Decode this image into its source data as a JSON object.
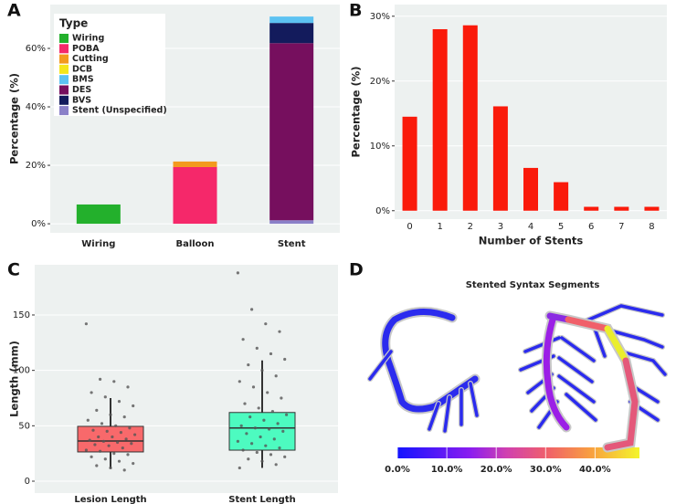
{
  "chart_data": [
    {
      "type": "stacked-bar",
      "panel": "A",
      "ylabel": "Percentage (%)",
      "legend_title": "Type",
      "legend": "top-left",
      "categories": [
        "Wiring",
        "Balloon",
        "Stent"
      ],
      "series": [
        {
          "name": "Wiring",
          "color": "#23b02c",
          "values": [
            6.6,
            0,
            0
          ]
        },
        {
          "name": "POBA",
          "color": "#f5286a",
          "values": [
            0,
            19.4,
            0
          ]
        },
        {
          "name": "Cutting",
          "color": "#f39a1e",
          "values": [
            0,
            1.9,
            0
          ]
        },
        {
          "name": "DCB",
          "color": "#f5e61c",
          "values": [
            0,
            0,
            0
          ]
        },
        {
          "name": "BMS",
          "color": "#5cc2f2",
          "values": [
            0,
            0,
            2.2
          ]
        },
        {
          "name": "DES",
          "color": "#760f5e",
          "values": [
            0,
            0,
            60.6
          ]
        },
        {
          "name": "BVS",
          "color": "#131b5c",
          "values": [
            0,
            0,
            6.9
          ]
        },
        {
          "name": "Stent (Unspecified)",
          "color": "#8a80c8",
          "values": [
            0,
            0,
            1.2
          ]
        }
      ],
      "ylim": [
        -3.1,
        75
      ],
      "yticks": [
        {
          "value": 0,
          "label": "0%"
        },
        {
          "value": 20,
          "label": "20%"
        },
        {
          "value": 40,
          "label": "40%"
        },
        {
          "value": 60,
          "label": "60%"
        }
      ]
    },
    {
      "type": "bar",
      "panel": "B",
      "ylabel": "Percentage (%)",
      "xlabel": "Number of Stents",
      "color": "#fa1a0a",
      "categories": [
        "0",
        "1",
        "2",
        "3",
        "4",
        "5",
        "6",
        "7",
        "8"
      ],
      "values": [
        14.5,
        28.0,
        28.6,
        16.1,
        6.6,
        4.4,
        0.6,
        0.6,
        0.6
      ],
      "ylim": [
        -1.3,
        31.8
      ],
      "yticks": [
        {
          "value": 0,
          "label": "0%"
        },
        {
          "value": 10,
          "label": "10%"
        },
        {
          "value": 20,
          "label": "20%"
        },
        {
          "value": 30,
          "label": "30%"
        }
      ]
    },
    {
      "type": "box",
      "panel": "C",
      "ylabel": "Length (mm)",
      "categories": [
        "Lesion Length",
        "Stent Length"
      ],
      "colors": [
        "#f8696b",
        "#4dfbc0"
      ],
      "boxes": [
        {
          "whisker_low": 11.5,
          "q1": 26.4,
          "median": 36.3,
          "q3": 49.5,
          "whisker_high": 75
        },
        {
          "whisker_low": 12,
          "q1": 28,
          "median": 48,
          "q3": 62,
          "whisker_high": 109
        }
      ],
      "points": [
        [
          142,
          92,
          90,
          85,
          80,
          76,
          72,
          68,
          64,
          60,
          58,
          55,
          52,
          50,
          48,
          46,
          45,
          44,
          42,
          40,
          40,
          38,
          37,
          36,
          35,
          34,
          33,
          32,
          30,
          28,
          27,
          25,
          24,
          22,
          20,
          18,
          16,
          14,
          12,
          10
        ],
        [
          188,
          155,
          142,
          135,
          128,
          120,
          115,
          110,
          105,
          100,
          95,
          90,
          85,
          80,
          75,
          70,
          66,
          63,
          60,
          58,
          55,
          52,
          50,
          48,
          47,
          45,
          43,
          40,
          38,
          36,
          34,
          32,
          30,
          28,
          26,
          24,
          22,
          20,
          18,
          15,
          12
        ]
      ],
      "ylim": [
        -10.7,
        195.3
      ],
      "yticks": [
        0,
        50,
        100,
        150
      ]
    },
    {
      "type": "colorbar",
      "panel": "D",
      "title": "Stented Syntax Segments",
      "vlim": [
        0,
        49
      ],
      "ticks": [
        {
          "value": 0,
          "label": "0.0%"
        },
        {
          "value": 10,
          "label": "10.0%"
        },
        {
          "value": 20,
          "label": "20.0%"
        },
        {
          "value": 30,
          "label": "30.0%"
        },
        {
          "value": 40,
          "label": "40.0%"
        }
      ]
    }
  ]
}
